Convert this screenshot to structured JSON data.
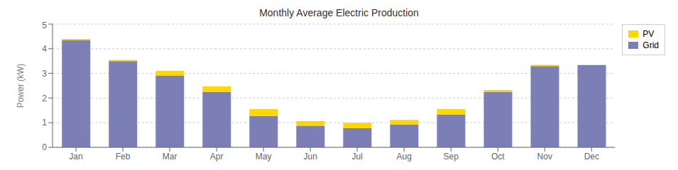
{
  "chart_data": {
    "type": "bar",
    "stacked": true,
    "title": "Monthly Average Electric Production",
    "ylabel": "Power (kW)",
    "categories": [
      "Jan",
      "Feb",
      "Mar",
      "Apr",
      "May",
      "Jun",
      "Jul",
      "Aug",
      "Sep",
      "Oct",
      "Nov",
      "Dec"
    ],
    "series": [
      {
        "name": "Grid",
        "color": "#7B7FB5",
        "values": [
          4.35,
          3.5,
          2.92,
          2.25,
          1.27,
          0.88,
          0.78,
          0.93,
          1.33,
          2.25,
          3.3,
          3.33
        ]
      },
      {
        "name": "PV",
        "color": "#FFD700",
        "values": [
          0.05,
          0.05,
          0.18,
          0.22,
          0.28,
          0.18,
          0.22,
          0.18,
          0.22,
          0.08,
          0.05,
          0.02
        ]
      }
    ],
    "ylim": [
      0,
      5
    ],
    "yticks": [
      0,
      1,
      2,
      3,
      4,
      5
    ],
    "grid": true,
    "legend": "upper right"
  }
}
